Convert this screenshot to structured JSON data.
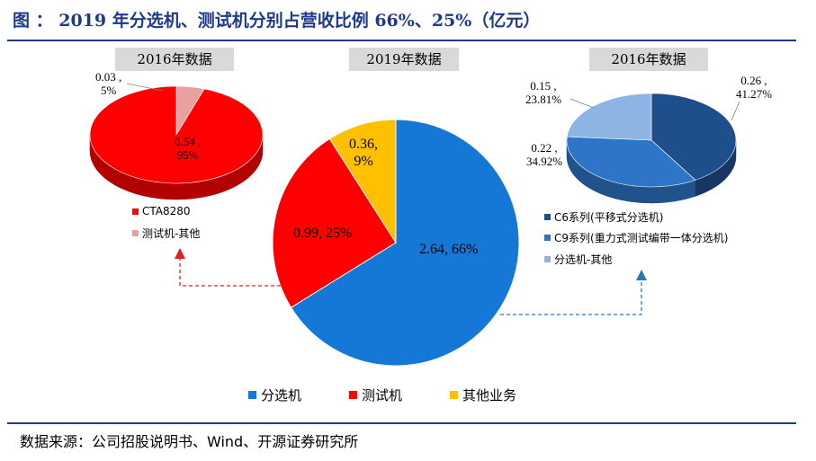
{
  "title": "图 ： 2019 年分选机、测试机分别占营收比例 66%、25%（亿元）",
  "source": "数据来源：公司招股说明书、Wind、开源证券研究所",
  "colors": {
    "title": "#1f3a8a",
    "red": "#ff0000",
    "pink": "#e8a0a0",
    "blue2019": "#1577d6",
    "yellow": "#ffc000",
    "navy": "#1f4e8c",
    "mid_blue": "#2e75c8",
    "light_blue": "#8db4e2",
    "arrow_red": "#e02020",
    "arrow_blue": "#2e75b6"
  },
  "chart_data": [
    {
      "type": "pie",
      "title": "2016年数据",
      "slices": [
        {
          "name": "CTA8280",
          "value": 0.54,
          "percent": "95%",
          "label": "0.54 ,\n95%",
          "color": "#ff0000"
        },
        {
          "name": "测试机-其他",
          "value": 0.03,
          "percent": "5%",
          "label": "0.03 ,\n5%",
          "color": "#e8a0a0"
        }
      ],
      "legend": [
        "CTA8280",
        "测试机-其他"
      ]
    },
    {
      "type": "pie",
      "title": "2019年数据",
      "slices": [
        {
          "name": "分选机",
          "value": 2.64,
          "percent": "66%",
          "label": "2.64, 66%",
          "color": "#1577d6"
        },
        {
          "name": "测试机",
          "value": 0.99,
          "percent": "25%",
          "label": "0.99, 25%",
          "color": "#ff0000"
        },
        {
          "name": "其他业务",
          "value": 0.36,
          "percent": "9%",
          "label": "0.36,\n9%",
          "color": "#ffc000"
        }
      ],
      "legend": [
        "分选机",
        "测试机",
        "其他业务"
      ]
    },
    {
      "type": "pie",
      "title": "2016年数据",
      "slices": [
        {
          "name": "C6系列(平移式分选机)",
          "value": 0.26,
          "percent": "41.27%",
          "label": "0.26 ,\n41.27%",
          "color": "#1f4e8c"
        },
        {
          "name": "C9系列(重力式测试编带一体分选机)",
          "value": 0.22,
          "percent": "34.92%",
          "label": "0.22 ,\n34.92%",
          "color": "#2e75c8"
        },
        {
          "name": "分选机-其他",
          "value": 0.15,
          "percent": "23.81%",
          "label": "0.15 ,\n23.81%",
          "color": "#8db4e2"
        }
      ],
      "legend": [
        "C6系列(平移式分选机)",
        "C9系列(重力式测试编带一体分选机)",
        "分选机-其他"
      ]
    }
  ]
}
